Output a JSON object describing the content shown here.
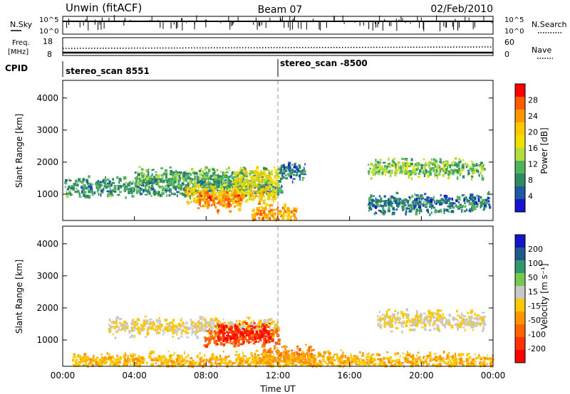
{
  "header": {
    "station": "Unwin (fitACF)",
    "beam": "Beam 07",
    "date": "02/Feb/2010"
  },
  "strip1": {
    "left_label": "N.Sky",
    "right_label": "N.Search",
    "left_ticks": [
      "10^5",
      "10^0"
    ],
    "right_ticks": [
      "10^5",
      "10^0"
    ]
  },
  "strip2": {
    "left_label_line1": "Freq.",
    "left_label_line2": "[MHz]",
    "right_label": "Nave",
    "left_ticks": [
      "18",
      "8"
    ],
    "right_ticks": [
      "60",
      "0"
    ]
  },
  "cpid": {
    "label": "CPID",
    "program_1": "stereo_scan 8551",
    "program_2": "stereo_scan -8500"
  },
  "xaxis": {
    "label": "Time UT",
    "ticks": [
      "00:00",
      "04:00",
      "08:00",
      "12:00",
      "16:00",
      "20:00",
      "00:00"
    ]
  },
  "colorbars": {
    "power_label": "Power [dB]",
    "power_ticks": [
      "28",
      "24",
      "20",
      "16",
      "12",
      "8",
      "4"
    ],
    "power_colors": [
      "#ff0000",
      "#ff5a00",
      "#ff9600",
      "#ffc800",
      "#f0e000",
      "#b4dc3c",
      "#50b45a",
      "#2e8a64",
      "#1e5aa0",
      "#1414d2"
    ],
    "velocity_label": "Velocity [m s⁻¹]",
    "velocity_ticks": [
      "200",
      "100",
      "50",
      "15",
      "-15",
      "-50",
      "-100",
      "-200"
    ],
    "velocity_colors": [
      "#1414c8",
      "#1e5a8c",
      "#32966e",
      "#78c850",
      "#c8c8c8",
      "#ffc800",
      "#ff9600",
      "#ff6400",
      "#ff3200",
      "#ff0000"
    ]
  },
  "chart_data": [
    {
      "type": "heatmap",
      "title": "Power",
      "ylabel": "Slant Range [km]",
      "xlabel": "Time UT",
      "xlim": [
        "00:00",
        "24:00"
      ],
      "ylim": [
        180,
        4550
      ],
      "yticks": [
        1000,
        2000,
        3000,
        4000
      ],
      "colorbar": {
        "label": "Power [dB]",
        "range": [
          0,
          32
        ]
      },
      "regions": [
        {
          "t_start": 0.1,
          "t_end": 12.2,
          "range_km": 1200,
          "power_db": 8
        },
        {
          "t_start": 4.0,
          "t_end": 11.5,
          "range_km": 1500,
          "power_db": 10
        },
        {
          "t_start": 6.8,
          "t_end": 11.8,
          "range_km": 1000,
          "power_db": 20
        },
        {
          "t_start": 7.5,
          "t_end": 10.0,
          "range_km": 800,
          "power_db": 26
        },
        {
          "t_start": 9.5,
          "t_end": 12.0,
          "range_km": 1500,
          "power_db": 18
        },
        {
          "t_start": 10.5,
          "t_end": 13.0,
          "range_km": 400,
          "power_db": 24
        },
        {
          "t_start": 12.0,
          "t_end": 13.5,
          "range_km": 1700,
          "power_db": 6
        },
        {
          "t_start": 17.0,
          "t_end": 23.5,
          "range_km": 1800,
          "power_db": 12
        },
        {
          "t_start": 17.0,
          "t_end": 23.8,
          "range_km": 700,
          "power_db": 6
        }
      ]
    },
    {
      "type": "heatmap",
      "title": "Velocity",
      "ylabel": "Slant Range [km]",
      "xlabel": "Time UT",
      "xlim": [
        "00:00",
        "24:00"
      ],
      "ylim": [
        180,
        4550
      ],
      "yticks": [
        1000,
        2000,
        3000,
        4000
      ],
      "colorbar": {
        "label": "Velocity [m s⁻¹]",
        "range": [
          -200,
          200
        ]
      },
      "regions": [
        {
          "t_start": 2.5,
          "t_end": 12.0,
          "range_km": 1400,
          "velocity_ms": 0
        },
        {
          "t_start": 7.8,
          "t_end": 12.0,
          "range_km": 1100,
          "velocity_ms": -110
        },
        {
          "t_start": 8.5,
          "t_end": 11.5,
          "range_km": 1200,
          "velocity_ms": -180
        },
        {
          "t_start": 11.0,
          "t_end": 14.0,
          "range_km": 500,
          "velocity_ms": -80
        },
        {
          "t_start": 17.5,
          "t_end": 23.5,
          "range_km": 1600,
          "velocity_ms": 0
        },
        {
          "t_start": 0.5,
          "t_end": 24.0,
          "range_km": 300,
          "velocity_ms": -40
        }
      ]
    }
  ]
}
